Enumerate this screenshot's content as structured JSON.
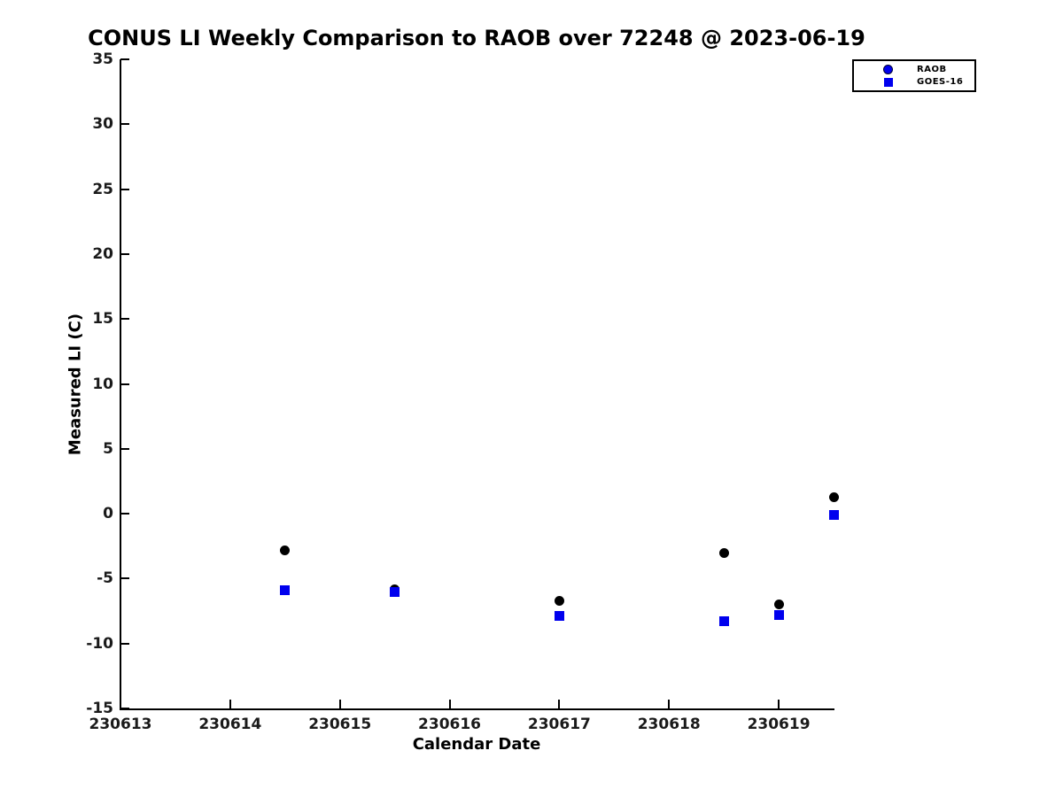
{
  "figure": {
    "background_color": "#ffffff",
    "text_color": "#000000"
  },
  "chart_data": {
    "type": "scatter",
    "title": "CONUS LI Weekly Comparison to RAOB over 72248 @ 2023-06-19",
    "xlabel": "Calendar Date",
    "ylabel": "Measured LI (C)",
    "xlim": [
      230613,
      230619.5
    ],
    "ylim": [
      -15,
      35
    ],
    "xticks": [
      230613,
      230614,
      230615,
      230616,
      230617,
      230618,
      230619
    ],
    "yticks": [
      35,
      30,
      25,
      20,
      15,
      10,
      5,
      0,
      -5,
      -10,
      -15
    ],
    "grid": false,
    "box": "left-bottom-only",
    "tick_direction": "in",
    "legend_position": "top-right-outside-plot",
    "series": [
      {
        "name": "RAOB",
        "marker": "circle",
        "marker_color": "#000000",
        "legend_marker_color": "#0000ee",
        "x": [
          230614.5,
          230615.5,
          230617.0,
          230618.5,
          230619.0,
          230619.5
        ],
        "y": [
          -2.8,
          -5.8,
          -6.7,
          -3.0,
          -7.0,
          1.3
        ]
      },
      {
        "name": "GOES-16",
        "marker": "square",
        "marker_color": "#0000ee",
        "legend_marker_color": "#0000ee",
        "x": [
          230614.5,
          230615.5,
          230617.0,
          230618.5,
          230619.0,
          230619.5
        ],
        "y": [
          -5.9,
          -6.0,
          -7.9,
          -8.3,
          -7.8,
          -0.1
        ]
      }
    ]
  }
}
